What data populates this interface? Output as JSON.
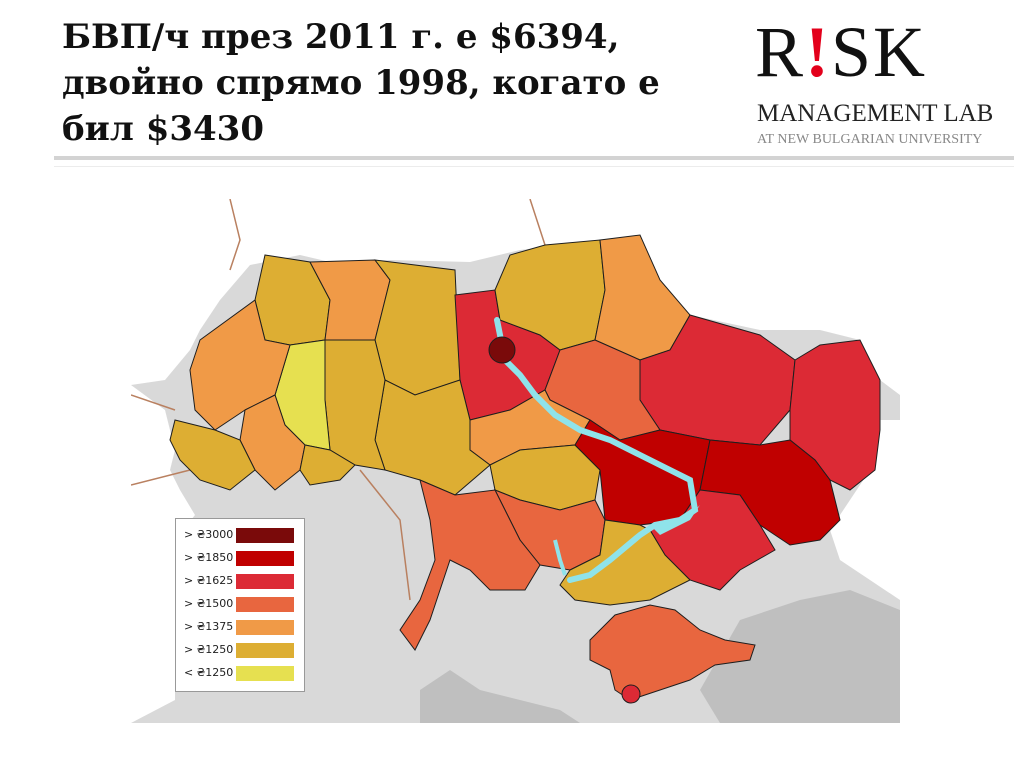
{
  "slide": {
    "title_line1": "БВП/ч през 2011 г. е $6394,",
    "title_line2": "двойно спрямо 1998, когато е",
    "title_line3": "бил $3430"
  },
  "logo": {
    "letter_r": "R",
    "letter_bang": "!",
    "letters_sk": "SK",
    "line2": "MANAGEMENT LAB",
    "line3": "AT NEW BULGARIAN UNIVERSITY"
  },
  "colors": {
    "sea": "#d9d9d9",
    "neighbor_land": "#ffffff",
    "river": "#8fe3ea",
    "border": "#1e1e1e",
    "accent_red": "#e3001b"
  },
  "legend": {
    "items": [
      {
        "label": "> ₴3000",
        "color": "#7a0a0a"
      },
      {
        "label": "> ₴1850",
        "color": "#c00000"
      },
      {
        "label": "> ₴1625",
        "color": "#dc2a35"
      },
      {
        "label": "> ₴1500",
        "color": "#e8663f"
      },
      {
        "label": "> ₴1375",
        "color": "#f09a47"
      },
      {
        "label": "> ₴1250",
        "color": "#ddae33"
      },
      {
        "label": "< ₴1250",
        "color": "#e6e050"
      }
    ]
  }
}
